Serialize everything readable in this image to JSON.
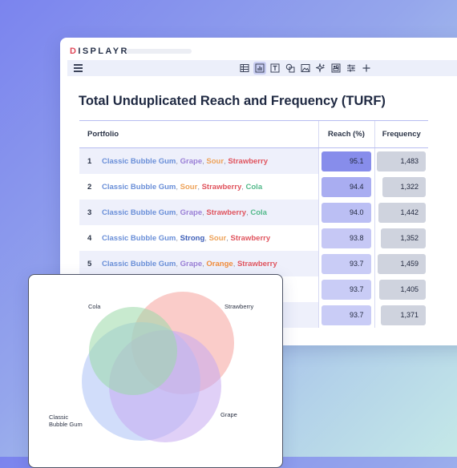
{
  "app": {
    "logo": "DISPLAYR",
    "logo_first": "D",
    "logo_rest": "ISPLAYR"
  },
  "toolbar": {
    "icons": [
      "table-icon",
      "chart-icon",
      "text-icon",
      "shapes-icon",
      "image-icon",
      "sparkle-icon",
      "layout-icon",
      "sliders-icon",
      "plus-icon"
    ],
    "active": "chart-icon"
  },
  "page": {
    "title": "Total Unduplicated Reach and Frequency (TURF)"
  },
  "table": {
    "headers": {
      "portfolio": "Portfolio",
      "reach": "Reach (%)",
      "frequency": "Frequency"
    },
    "rows": [
      {
        "num": "1",
        "items": [
          "Classic Bubble Gum",
          "Grape",
          "Sour",
          "Strawberry"
        ],
        "reach": "95.1",
        "frequency": "1,483"
      },
      {
        "num": "2",
        "items": [
          "Classic Bubble Gum",
          "Sour",
          "Strawberry",
          "Cola"
        ],
        "reach": "94.4",
        "frequency": "1,322"
      },
      {
        "num": "3",
        "items": [
          "Classic Bubble Gum",
          "Grape",
          "Strawberry",
          "Cola"
        ],
        "reach": "94.0",
        "frequency": "1,442"
      },
      {
        "num": "4",
        "items": [
          "Classic Bubble Gum",
          "Strong",
          "Sour",
          "Strawberry"
        ],
        "reach": "93.8",
        "frequency": "1,352"
      },
      {
        "num": "5",
        "items": [
          "Classic Bubble Gum",
          "Grape",
          "Orange",
          "Strawberry"
        ],
        "reach": "93.7",
        "frequency": "1,459"
      },
      {
        "num": "",
        "items": [],
        "reach": "93.7",
        "frequency": "1,405"
      },
      {
        "num": "",
        "items": [],
        "reach": "93.7",
        "frequency": "1,371"
      }
    ],
    "item_colors": {
      "Classic Bubble Gum": "#6a8fd8",
      "Grape": "#9a7fd6",
      "Sour": "#eea35a",
      "Strawberry": "#e0545e",
      "Cola": "#52b98a",
      "Strong": "#3e5fb8",
      "Orange": "#f08c3c"
    },
    "reach_color": "#8288ea"
  },
  "venn": {
    "labels": {
      "cola": "Cola",
      "strawberry": "Strawberry",
      "bubble_gum_line1": "Classic",
      "bubble_gum_line2": "Bubble Gum",
      "grape": "Grape"
    },
    "colors": {
      "cola": "#9ad9a7",
      "strawberry": "#f6a29d",
      "bubble_gum": "#b2c6f7",
      "grape": "#c6aaf1"
    }
  }
}
